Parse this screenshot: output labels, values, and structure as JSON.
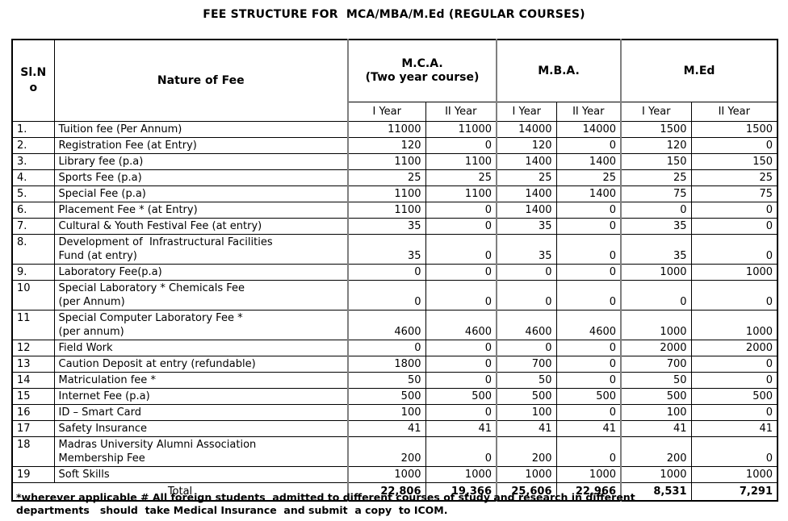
{
  "title": "FEE STRUCTURE FOR  MCA/MBA/M.Ed (REGULAR COURSES)",
  "table": {
    "header": {
      "sl_no": "Sl.No",
      "nature_of_fee": "Nature of Fee",
      "groups": [
        {
          "label": "M.C.A.",
          "sublabel": "(Two year course)"
        },
        {
          "label": "M.B.A.",
          "sublabel": ""
        },
        {
          "label": "M.Ed",
          "sublabel": ""
        }
      ],
      "year_columns": [
        "I Year",
        "II Year",
        "I Year",
        "II Year",
        "I Year",
        "II Year"
      ]
    },
    "rows": [
      {
        "sl": "1.",
        "fee": "Tuition fee (Per Annum)",
        "values": [
          "11000",
          "11000",
          "14000",
          "14000",
          "1500",
          "1500"
        ]
      },
      {
        "sl": "2.",
        "fee": "Registration Fee (at Entry)",
        "values": [
          "120",
          "0",
          "120",
          "0",
          "120",
          "0"
        ]
      },
      {
        "sl": "3.",
        "fee": "Library fee (p.a)",
        "values": [
          "1100",
          "1100",
          "1400",
          "1400",
          "150",
          "150"
        ]
      },
      {
        "sl": "4.",
        "fee": "Sports Fee (p.a)",
        "values": [
          "25",
          "25",
          "25",
          "25",
          "25",
          "25"
        ]
      },
      {
        "sl": "5.",
        "fee": "Special Fee (p.a)",
        "values": [
          "1100",
          "1100",
          "1400",
          "1400",
          "75",
          "75"
        ]
      },
      {
        "sl": "6.",
        "fee": "Placement Fee * (at Entry)",
        "values": [
          "1100",
          "0",
          "1400",
          "0",
          "0",
          "0"
        ]
      },
      {
        "sl": "7.",
        "fee": "Cultural & Youth Festival Fee (at entry)",
        "values": [
          "35",
          "0",
          "35",
          "0",
          "35",
          "0"
        ]
      },
      {
        "sl": "8.",
        "fee": "Development of  Infrastructural Facilities\nFund (at entry)",
        "values": [
          "35",
          "0",
          "35",
          "0",
          "35",
          "0"
        ]
      },
      {
        "sl": "9.",
        "fee": "Laboratory Fee(p.a)",
        "values": [
          "0",
          "0",
          "0",
          "0",
          "1000",
          "1000"
        ]
      },
      {
        "sl": "10",
        "fee": "Special Laboratory * Chemicals Fee\n(per Annum)",
        "values": [
          "0",
          "0",
          "0",
          "0",
          "0",
          "0"
        ]
      },
      {
        "sl": "11",
        "fee": "Special Computer Laboratory Fee *\n(per annum)",
        "values": [
          "4600",
          "4600",
          "4600",
          "4600",
          "1000",
          "1000"
        ]
      },
      {
        "sl": "12",
        "fee": "Field Work",
        "values": [
          "0",
          "0",
          "0",
          "0",
          "2000",
          "2000"
        ]
      },
      {
        "sl": "13",
        "fee": "Caution Deposit at entry (refundable)",
        "values": [
          "1800",
          "0",
          "700",
          "0",
          "700",
          "0"
        ]
      },
      {
        "sl": "14",
        "fee": "Matriculation fee *",
        "values": [
          "50",
          "0",
          "50",
          "0",
          "50",
          "0"
        ]
      },
      {
        "sl": "15",
        "fee": "Internet Fee (p.a)",
        "values": [
          "500",
          "500",
          "500",
          "500",
          "500",
          "500"
        ]
      },
      {
        "sl": "16",
        "fee": "ID – Smart Card",
        "values": [
          "100",
          "0",
          "100",
          "0",
          "100",
          "0"
        ]
      },
      {
        "sl": "17",
        "fee": "Safety Insurance",
        "values": [
          "41",
          "41",
          "41",
          "41",
          "41",
          "41"
        ]
      },
      {
        "sl": "18",
        "fee": "Madras University Alumni Association\nMembership Fee",
        "values": [
          "200",
          "0",
          "200",
          "0",
          "200",
          "0"
        ]
      },
      {
        "sl": "19",
        "fee": "Soft Skills",
        "values": [
          "1000",
          "1000",
          "1000",
          "1000",
          "1000",
          "1000"
        ]
      }
    ],
    "total": {
      "label": "Total",
      "values": [
        "22,806",
        "19,366",
        "25,606",
        "22,966",
        "8,531",
        "7,291"
      ]
    }
  },
  "footnote": "*wherever applicable # All foreign students  admitted to different courses of study and research in different\ndepartments   should  take Medical Insurance  and submit  a copy  to ICOM."
}
